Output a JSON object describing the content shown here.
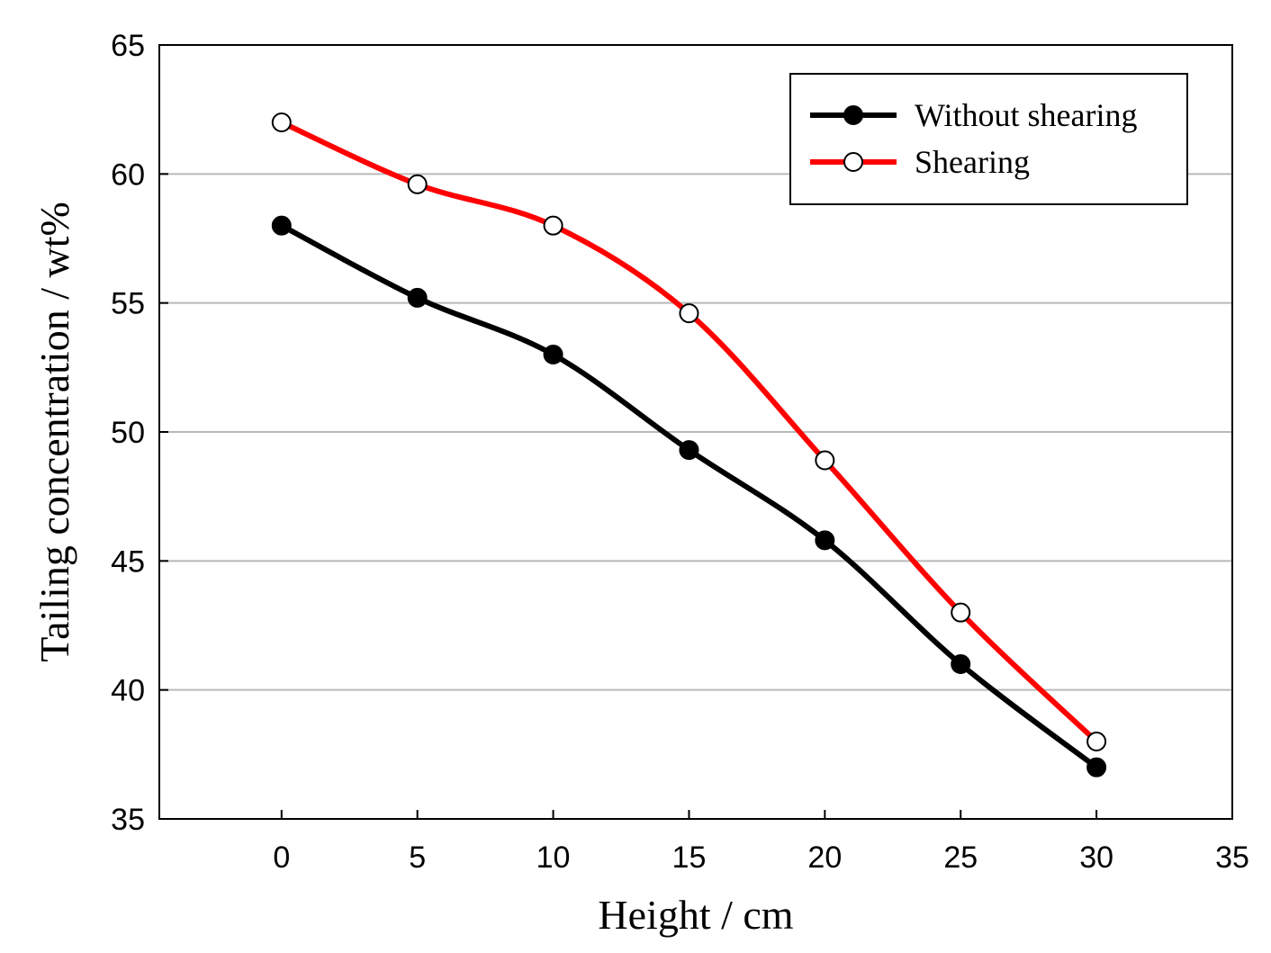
{
  "chart_data": {
    "type": "line",
    "title": "",
    "xlabel": "Height / cm",
    "ylabel": "Tailing concentration / wt%",
    "xlim": [
      -4.5,
      35
    ],
    "ylim": [
      35,
      65
    ],
    "x_ticks": [
      0,
      5,
      10,
      15,
      20,
      25,
      30,
      35
    ],
    "y_ticks": [
      35,
      40,
      45,
      50,
      55,
      60,
      65
    ],
    "grid": "horizontal",
    "legend_position": "top-right",
    "x": [
      0,
      5,
      10,
      15,
      20,
      25,
      30
    ],
    "series": [
      {
        "name": "Without shearing",
        "color": "#000000",
        "marker": "filled-circle",
        "values": [
          58.0,
          55.2,
          53.0,
          49.3,
          45.8,
          41.0,
          37.0
        ]
      },
      {
        "name": "Shearing",
        "color": "#ff0000",
        "marker": "open-circle",
        "values": [
          62.0,
          59.6,
          58.0,
          54.6,
          48.9,
          43.0,
          38.0
        ]
      }
    ]
  }
}
